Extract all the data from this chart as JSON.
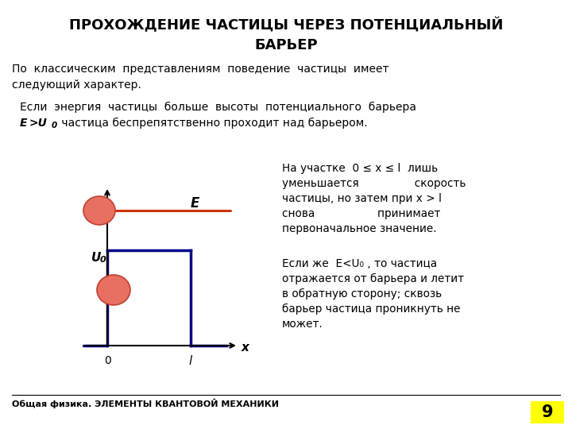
{
  "title_line1": "ПРОХОЖДЕНИЕ ЧАСТИЦЫ ЧЕРЕЗ ПОТЕНЦИАЛЬНЫЙ",
  "title_line2": "БАРЬЕР",
  "bg_color": "#ffffff",
  "text_color": "#000000",
  "title_color": "#000000",
  "barrier_color": "#00008B",
  "xaxis_color": "#000000",
  "energy_line_color": "#cc3300",
  "particle_color_fill": "#e87060",
  "particle_color_edge": "#c04030",
  "footer_text": "Общая физика. ЭЛЕМЕНТЫ КВАНТОВОЙ МЕХАНИКИ",
  "page_number": "9",
  "page_bg": "#ffff00"
}
